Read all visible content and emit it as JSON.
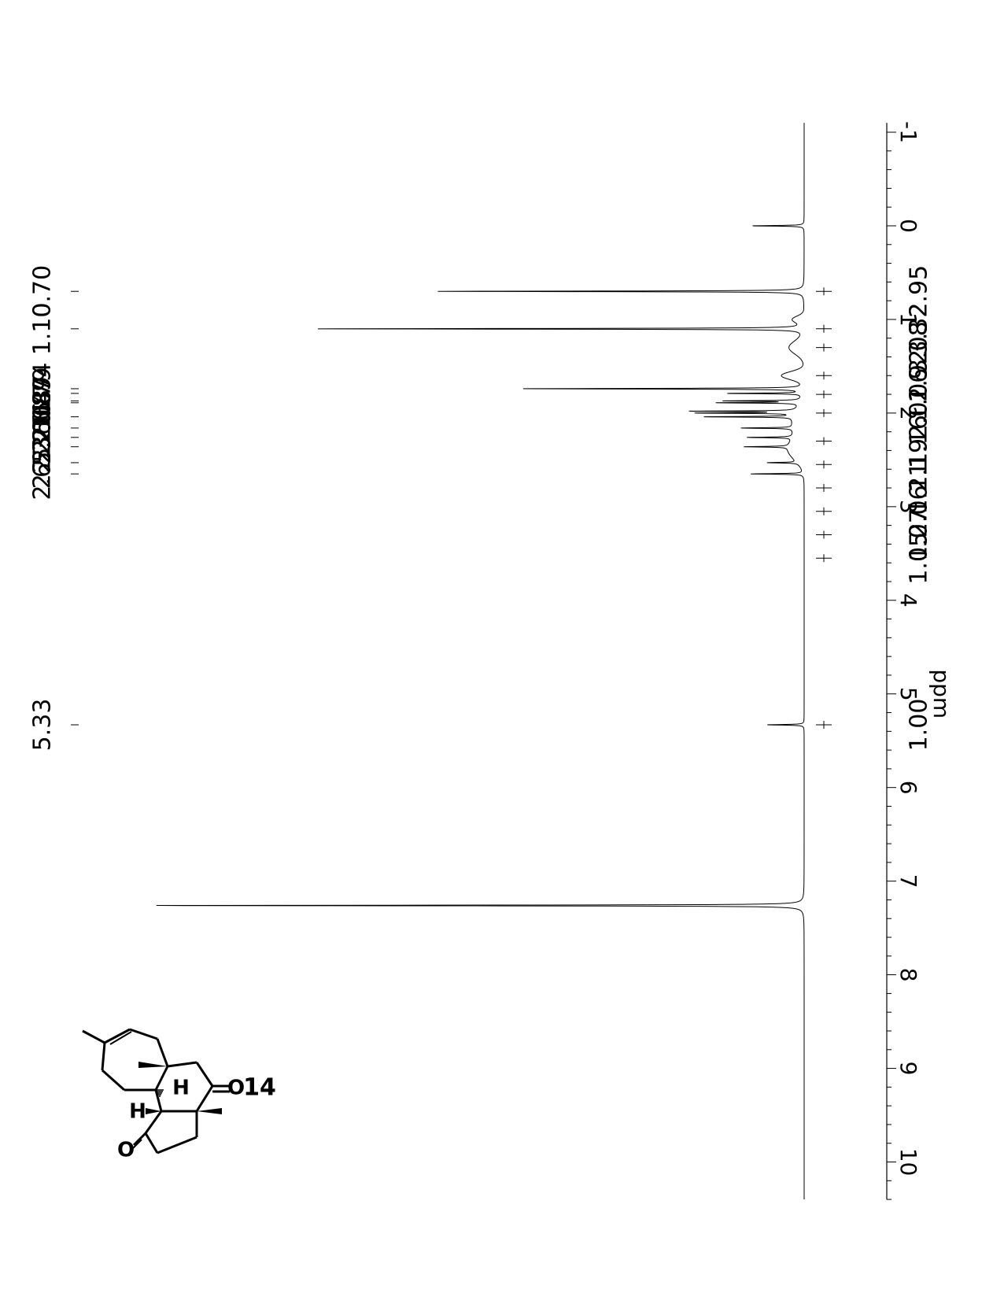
{
  "chart_data": {
    "type": "line",
    "title": "",
    "xlabel": "ppm",
    "ylabel": "",
    "x_axis": {
      "range": [
        10.5,
        -1.0
      ],
      "tick_labels": [
        "-1",
        "0",
        "1",
        "2",
        "3",
        "4",
        "5",
        "6",
        "7",
        "8",
        "9",
        "10"
      ],
      "tick_values": [
        -1,
        0,
        1,
        2,
        3,
        4,
        5,
        6,
        7,
        8,
        9,
        10
      ]
    },
    "grid": false,
    "legend": "none",
    "peaks": [
      {
        "ppm": 0.0,
        "height": 0.07
      },
      {
        "ppm": 0.7,
        "height": 0.49
      },
      {
        "ppm": 1.1,
        "height": 0.66
      },
      {
        "ppm": 1.74,
        "height": 0.38
      },
      {
        "ppm": 1.79,
        "height": 0.1
      },
      {
        "ppm": 1.87,
        "height": 0.1
      },
      {
        "ppm": 1.89,
        "height": 0.11
      },
      {
        "ppm": 1.98,
        "height": 0.14
      },
      {
        "ppm": 2.0,
        "height": 0.13
      },
      {
        "ppm": 2.04,
        "height": 0.12
      },
      {
        "ppm": 2.16,
        "height": 0.07
      },
      {
        "ppm": 2.26,
        "height": 0.06
      },
      {
        "ppm": 2.36,
        "height": 0.06
      },
      {
        "ppm": 2.53,
        "height": 0.04
      },
      {
        "ppm": 2.65,
        "height": 0.07
      },
      {
        "ppm": 5.33,
        "height": 0.05
      },
      {
        "ppm": 7.26,
        "height": 0.88
      }
    ],
    "peak_labels": [
      "0.70",
      "1.10",
      "1.74",
      "1.79",
      "1.87",
      "1.89",
      "2.04",
      "2.16",
      "2.26",
      "2.36",
      "2.53",
      "2.65",
      "5.33"
    ],
    "peak_label_positions_ppm": [
      0.7,
      1.1,
      1.74,
      1.79,
      1.87,
      1.89,
      2.04,
      2.16,
      2.26,
      2.36,
      2.53,
      2.65,
      5.33
    ],
    "integrals": [
      {
        "ppm": 0.7,
        "value": "2.95"
      },
      {
        "ppm": 1.1,
        "value": "3.32"
      },
      {
        "ppm": 1.3,
        "value": "3.08"
      },
      {
        "ppm": 1.6,
        "value": "2.92"
      },
      {
        "ppm": 1.8,
        "value": "1.06"
      },
      {
        "ppm": 2.0,
        "value": "2.01"
      },
      {
        "ppm": 2.3,
        "value": "1.16"
      },
      {
        "ppm": 2.55,
        "value": "1.19"
      },
      {
        "ppm": 2.8,
        "value": "1.21"
      },
      {
        "ppm": 3.05,
        "value": "2.06"
      },
      {
        "ppm": 3.3,
        "value": "1.07"
      },
      {
        "ppm": 3.55,
        "value": "1.05"
      },
      {
        "ppm": 5.33,
        "value": "1.00"
      }
    ],
    "compound_label": "14"
  }
}
